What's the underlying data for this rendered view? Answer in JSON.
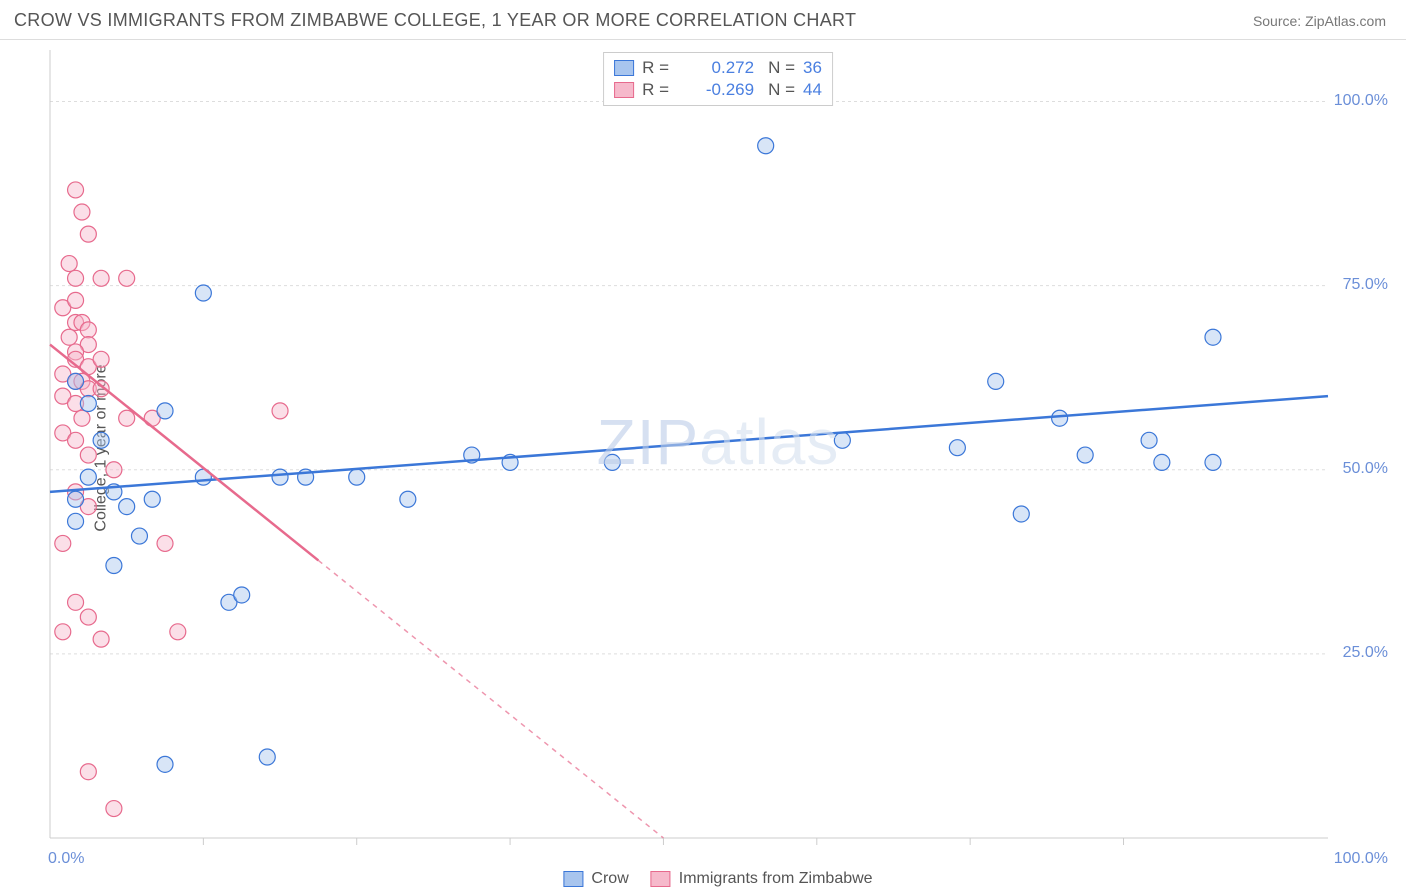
{
  "header": {
    "title": "CROW VS IMMIGRANTS FROM ZIMBABWE COLLEGE, 1 YEAR OR MORE CORRELATION CHART",
    "source": "Source: ZipAtlas.com"
  },
  "chart": {
    "type": "scatter",
    "y_axis_label": "College, 1 year or more",
    "watermark": "ZIPatlas",
    "background_color": "#ffffff",
    "grid_color": "#dddddd",
    "axis_color": "#cccccc",
    "tick_font_size": 16,
    "tick_color": "#6b8fd8",
    "xlim": [
      0,
      100
    ],
    "ylim": [
      0,
      107
    ],
    "x_ticks": [
      0,
      100
    ],
    "x_tick_labels": [
      "0.0%",
      "100.0%"
    ],
    "y_ticks": [
      25,
      50,
      75,
      100
    ],
    "y_tick_labels": [
      "25.0%",
      "50.0%",
      "75.0%",
      "100.0%"
    ],
    "x_minor_ticks": [
      12,
      24,
      36,
      48,
      60,
      72,
      84
    ],
    "marker_radius": 8,
    "marker_stroke_width": 1.2,
    "marker_fill_opacity": 0.45,
    "regression_line_width": 2.5,
    "series": [
      {
        "name": "Crow",
        "color_stroke": "#3b77d8",
        "color_fill": "#a8c5ee",
        "R": "0.272",
        "N": "36",
        "regression": {
          "x1": 0,
          "y1": 47,
          "x2": 100,
          "y2": 60,
          "solid_to_x": 100,
          "dash_pattern": ""
        },
        "points": [
          [
            2,
            62
          ],
          [
            3,
            59
          ],
          [
            4,
            54
          ],
          [
            3,
            49
          ],
          [
            5,
            47
          ],
          [
            2,
            46
          ],
          [
            5,
            37
          ],
          [
            2,
            43
          ],
          [
            7,
            41
          ],
          [
            6,
            45
          ],
          [
            8,
            46
          ],
          [
            9,
            58
          ],
          [
            12,
            74
          ],
          [
            12,
            49
          ],
          [
            14,
            32
          ],
          [
            15,
            33
          ],
          [
            17,
            11
          ],
          [
            18,
            49
          ],
          [
            20,
            49
          ],
          [
            24,
            49
          ],
          [
            28,
            46
          ],
          [
            33,
            52
          ],
          [
            36,
            51
          ],
          [
            44,
            51
          ],
          [
            56,
            94
          ],
          [
            62,
            54
          ],
          [
            71,
            53
          ],
          [
            74,
            62
          ],
          [
            76,
            44
          ],
          [
            79,
            57
          ],
          [
            81,
            52
          ],
          [
            86,
            54
          ],
          [
            87,
            51
          ],
          [
            91,
            51
          ],
          [
            91,
            68
          ],
          [
            9,
            10
          ]
        ]
      },
      {
        "name": "Immigrants from Zimbabwe",
        "color_stroke": "#e76a8d",
        "color_fill": "#f6b9cb",
        "R": "-0.269",
        "N": "44",
        "regression": {
          "x1": 0,
          "y1": 67,
          "x2": 48,
          "y2": 0,
          "solid_to_x": 21,
          "dash_pattern": "5,5"
        },
        "points": [
          [
            2,
            88
          ],
          [
            2.5,
            85
          ],
          [
            3,
            82
          ],
          [
            1.5,
            78
          ],
          [
            2,
            76
          ],
          [
            4,
            76
          ],
          [
            6,
            76
          ],
          [
            1,
            72
          ],
          [
            2,
            70
          ],
          [
            2.5,
            70
          ],
          [
            3,
            69
          ],
          [
            3,
            67
          ],
          [
            2,
            66
          ],
          [
            2,
            65
          ],
          [
            3,
            64
          ],
          [
            4,
            65
          ],
          [
            1,
            63
          ],
          [
            2,
            62
          ],
          [
            2.5,
            62
          ],
          [
            3,
            61
          ],
          [
            4,
            61
          ],
          [
            1,
            60
          ],
          [
            2,
            59
          ],
          [
            2.5,
            57
          ],
          [
            6,
            57
          ],
          [
            8,
            57
          ],
          [
            1,
            55
          ],
          [
            2,
            54
          ],
          [
            5,
            50
          ],
          [
            2,
            47
          ],
          [
            3,
            45
          ],
          [
            1,
            40
          ],
          [
            2,
            32
          ],
          [
            1,
            28
          ],
          [
            4,
            27
          ],
          [
            10,
            28
          ],
          [
            9,
            40
          ],
          [
            18,
            58
          ],
          [
            3,
            9
          ],
          [
            5,
            4
          ],
          [
            3,
            30
          ],
          [
            3,
            52
          ],
          [
            1.5,
            68
          ],
          [
            2,
            73
          ]
        ]
      }
    ],
    "legend_bottom": [
      {
        "label": "Crow",
        "stroke": "#3b77d8",
        "fill": "#a8c5ee"
      },
      {
        "label": "Immigrants from Zimbabwe",
        "stroke": "#e76a8d",
        "fill": "#f6b9cb"
      }
    ]
  }
}
